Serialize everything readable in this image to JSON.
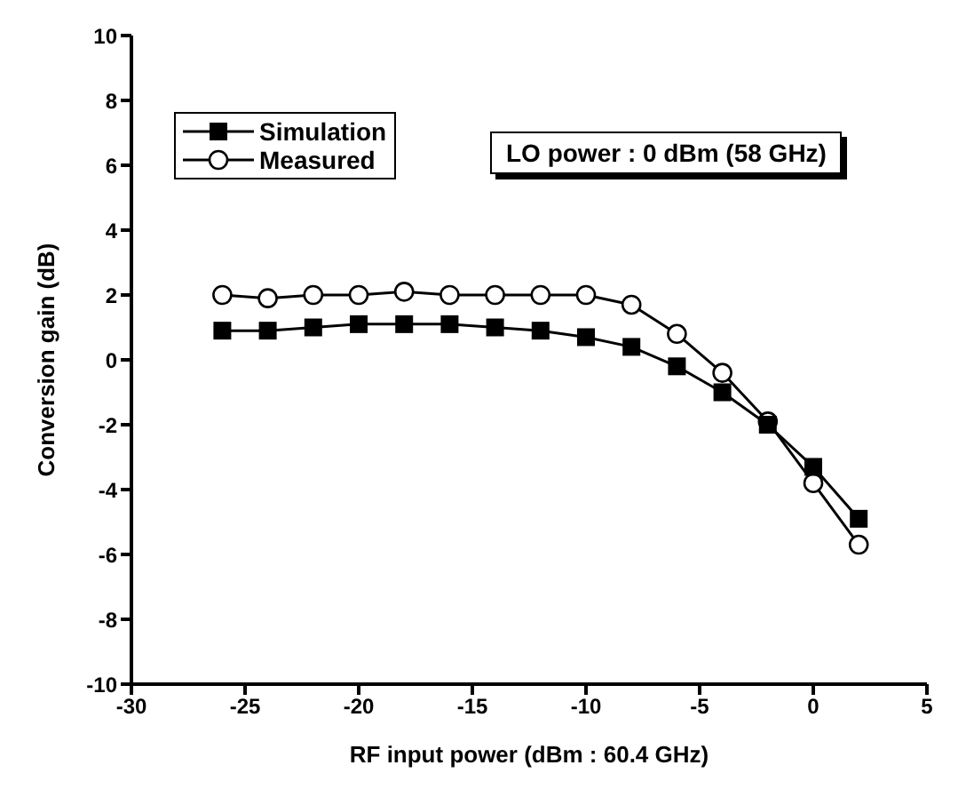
{
  "chart_data": {
    "type": "line",
    "xlabel": "RF input power (dBm : 60.4 GHz)",
    "ylabel": "Conversion gain (dB)",
    "x": [
      -26,
      -24,
      -22,
      -20,
      -18,
      -16,
      -14,
      -12,
      -10,
      -8,
      -6,
      -4,
      -2,
      0,
      2
    ],
    "series": [
      {
        "name": "Simulation",
        "color": "#000000",
        "marker": "square",
        "values": [
          0.9,
          0.9,
          1.0,
          1.1,
          1.1,
          1.1,
          1.0,
          0.9,
          0.7,
          0.4,
          -0.2,
          -1.0,
          -2.0,
          -3.3,
          -4.9
        ]
      },
      {
        "name": "Measured",
        "color": "#000000",
        "marker": "circle",
        "values": [
          2.0,
          1.9,
          2.0,
          2.0,
          2.1,
          2.0,
          2.0,
          2.0,
          2.0,
          1.7,
          0.8,
          -0.4,
          -1.9,
          -3.8,
          -5.7
        ]
      }
    ],
    "xlim": [
      -30,
      5
    ],
    "xticks": [
      -30,
      -25,
      -20,
      -15,
      -10,
      -5,
      0,
      5
    ],
    "ylim": [
      -10,
      10
    ],
    "yticks": [
      -10,
      -8,
      -6,
      -4,
      -2,
      0,
      2,
      4,
      6,
      8,
      10
    ],
    "grid": false,
    "legend": "top left",
    "line_style": "solid",
    "annotations": [
      "LO power : 0 dBm (58 GHz)"
    ]
  }
}
